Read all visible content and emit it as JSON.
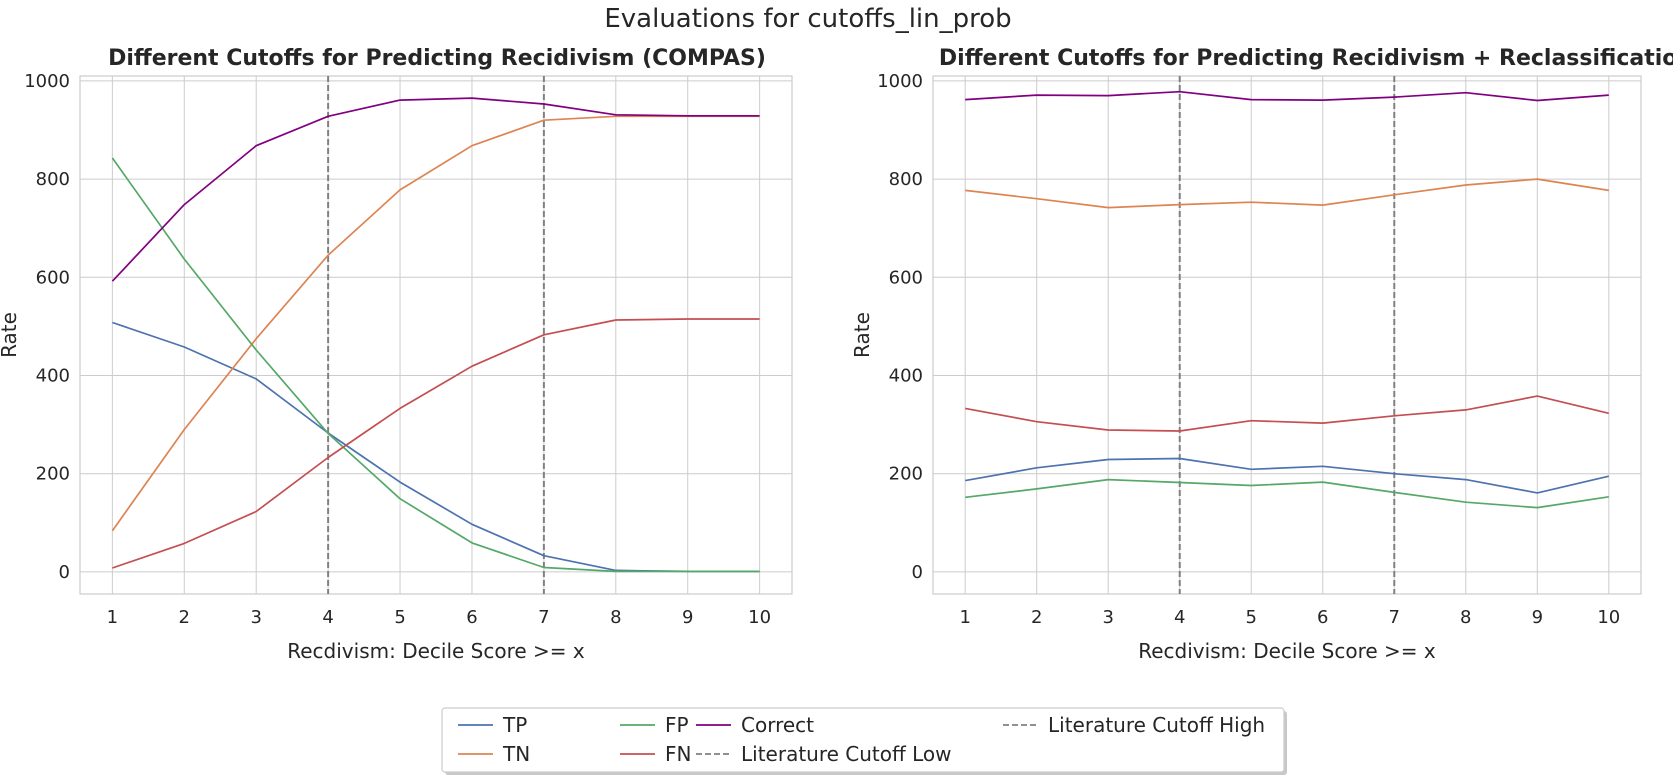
{
  "figure": {
    "suptitle": "Evaluations for cutoffs_lin_prob"
  },
  "chart_data": [
    {
      "type": "line",
      "title": "Different Cutoffs for Predicting Recidivism (COMPAS)",
      "xlabel": "Recdivism: Decile Score >= x",
      "ylabel": "Rate",
      "x": [
        1,
        2,
        3,
        4,
        5,
        6,
        7,
        8,
        9,
        10
      ],
      "xlim": [
        0.55,
        10.45
      ],
      "ylim": [
        -45,
        1010
      ],
      "xticks": [
        1,
        2,
        3,
        4,
        5,
        6,
        7,
        8,
        9,
        10
      ],
      "yticks": [
        0,
        200,
        400,
        600,
        800,
        1000
      ],
      "grid": true,
      "series": [
        {
          "name": "TP",
          "color": "#4c72b0",
          "values": [
            508,
            458,
            393,
            283,
            183,
            97,
            33,
            3,
            1,
            1
          ]
        },
        {
          "name": "TN",
          "color": "#dd8452",
          "values": [
            84,
            290,
            475,
            645,
            778,
            868,
            920,
            928,
            928,
            928
          ]
        },
        {
          "name": "FP",
          "color": "#55a868",
          "values": [
            843,
            637,
            452,
            282,
            149,
            59,
            9,
            1,
            1,
            1
          ]
        },
        {
          "name": "FN",
          "color": "#c44e52",
          "values": [
            8,
            58,
            123,
            233,
            333,
            419,
            483,
            513,
            515,
            515
          ]
        },
        {
          "name": "Correct",
          "color": "#800080",
          "values": [
            592,
            748,
            868,
            928,
            961,
            965,
            953,
            931,
            929,
            929
          ]
        }
      ],
      "vlines": [
        {
          "name": "Literature Cutoff Low",
          "x": 4,
          "color": "#808080"
        },
        {
          "name": "Literature Cutoff High",
          "x": 7,
          "color": "#808080"
        }
      ]
    },
    {
      "type": "line",
      "title": "Different Cutoffs for Predicting Recidivism + Reclassification",
      "xlabel": "Recdivism: Decile Score >= x",
      "ylabel": "Rate",
      "x": [
        1,
        2,
        3,
        4,
        5,
        6,
        7,
        8,
        9,
        10
      ],
      "xlim": [
        0.55,
        10.45
      ],
      "ylim": [
        -45,
        1010
      ],
      "xticks": [
        1,
        2,
        3,
        4,
        5,
        6,
        7,
        8,
        9,
        10
      ],
      "yticks": [
        0,
        200,
        400,
        600,
        800,
        1000
      ],
      "grid": true,
      "series": [
        {
          "name": "TP",
          "color": "#4c72b0",
          "values": [
            186,
            212,
            229,
            231,
            209,
            215,
            200,
            188,
            161,
            195
          ]
        },
        {
          "name": "TN",
          "color": "#dd8452",
          "values": [
            777,
            760,
            742,
            748,
            753,
            747,
            768,
            788,
            800,
            777
          ]
        },
        {
          "name": "FP",
          "color": "#55a868",
          "values": [
            152,
            169,
            188,
            182,
            176,
            183,
            162,
            142,
            131,
            153
          ]
        },
        {
          "name": "FN",
          "color": "#c44e52",
          "values": [
            333,
            306,
            289,
            287,
            308,
            303,
            318,
            330,
            358,
            323
          ]
        },
        {
          "name": "Correct",
          "color": "#800080",
          "values": [
            962,
            971,
            970,
            978,
            962,
            961,
            967,
            976,
            960,
            971
          ]
        }
      ],
      "vlines": [
        {
          "name": "Literature Cutoff Low",
          "x": 4,
          "color": "#808080"
        },
        {
          "name": "Literature Cutoff High",
          "x": 7,
          "color": "#808080"
        }
      ]
    }
  ],
  "legend": {
    "placement": "bottom-center",
    "items": [
      {
        "label": "TP",
        "color": "#4c72b0",
        "style": "solid"
      },
      {
        "label": "TN",
        "color": "#dd8452",
        "style": "solid"
      },
      {
        "label": "FP",
        "color": "#55a868",
        "style": "solid"
      },
      {
        "label": "FN",
        "color": "#c44e52",
        "style": "solid"
      },
      {
        "label": "Correct",
        "color": "#800080",
        "style": "solid"
      },
      {
        "label": "Literature Cutoff Low",
        "color": "#808080",
        "style": "dashed"
      },
      {
        "label": "Literature Cutoff High",
        "color": "#808080",
        "style": "dashed"
      }
    ]
  }
}
